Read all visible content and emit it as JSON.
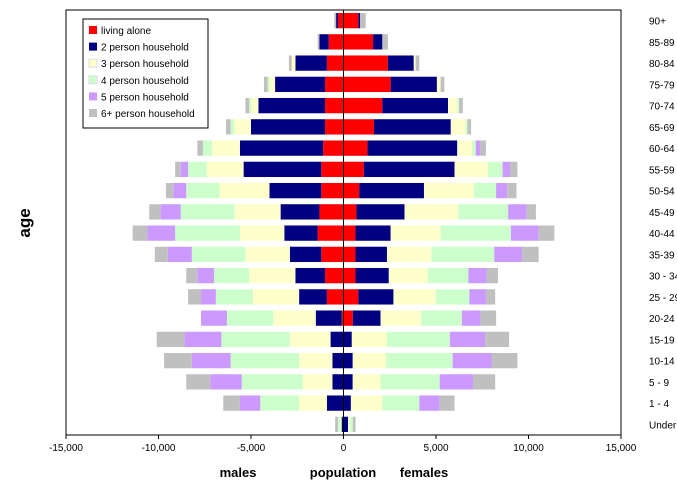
{
  "chart_data": {
    "type": "bar",
    "orientation": "horizontal",
    "stacked": true,
    "diverging": true,
    "categories": [
      "Under 1",
      "1 - 4",
      "5 - 9",
      "10-14",
      "15-19",
      "20-24",
      "25 - 29",
      "30 - 34",
      "35-39",
      "40-44",
      "45-49",
      "50-54",
      "55-59",
      "60-64",
      "65-69",
      "70-74",
      "75-79",
      "80-84",
      "85-89",
      "90+"
    ],
    "series": [
      {
        "name": "living alone",
        "color": "#ff0000",
        "males": [
          0,
          0,
          0,
          0,
          0,
          100,
          900,
          1000,
          1200,
          1400,
          1300,
          1200,
          1200,
          1100,
          1000,
          1000,
          1000,
          900,
          800,
          300
        ],
        "females": [
          0,
          0,
          0,
          0,
          0,
          500,
          800,
          650,
          650,
          650,
          700,
          850,
          1100,
          1300,
          1650,
          2100,
          2550,
          2400,
          1600,
          800
        ]
      },
      {
        "name": "2 person household",
        "color": "#000080",
        "males": [
          100,
          900,
          600,
          600,
          700,
          1400,
          1500,
          1600,
          1700,
          1800,
          2100,
          2800,
          4200,
          4500,
          4000,
          3600,
          2700,
          1700,
          500,
          100
        ],
        "females": [
          250,
          400,
          500,
          500,
          450,
          1500,
          1900,
          1800,
          1700,
          1900,
          2600,
          3500,
          4900,
          4850,
          4150,
          3550,
          2500,
          1400,
          500,
          100
        ]
      },
      {
        "name": "3 person household",
        "color": "#ffffcc",
        "males": [
          50,
          1500,
          1600,
          1800,
          2200,
          2300,
          2500,
          2500,
          2400,
          2400,
          2500,
          2700,
          2000,
          1500,
          900,
          400,
          300,
          200,
          0,
          0
        ],
        "females": [
          100,
          1700,
          1500,
          1800,
          1900,
          2200,
          2300,
          2100,
          2400,
          2700,
          2900,
          2700,
          1800,
          800,
          800,
          500,
          200,
          100,
          0,
          0
        ]
      },
      {
        "name": "4 person household",
        "color": "#ccffcc",
        "males": [
          150,
          2100,
          3300,
          3700,
          3700,
          2500,
          2000,
          1900,
          2900,
          3500,
          2900,
          1800,
          1000,
          500,
          200,
          100,
          100,
          0,
          0,
          0
        ],
        "females": [
          150,
          2000,
          3200,
          3600,
          3400,
          2200,
          1800,
          2200,
          3400,
          3800,
          2700,
          1200,
          800,
          200,
          100,
          100,
          0,
          0,
          0,
          0
        ],
        "label_printed_in_legend": true
      },
      {
        "name": "5 person household",
        "color": "#cc99ff",
        "males": [
          0,
          1100,
          1700,
          2100,
          2000,
          1400,
          800,
          900,
          1300,
          1500,
          1100,
          700,
          400,
          0,
          0,
          0,
          0,
          0,
          0,
          0
        ],
        "females": [
          0,
          1100,
          1800,
          2100,
          1900,
          1000,
          900,
          1000,
          1500,
          1500,
          1000,
          600,
          400,
          250,
          0,
          0,
          0,
          0,
          0,
          0
        ]
      },
      {
        "name": "6+ person household",
        "color": "#c0c0c0",
        "males": [
          150,
          900,
          1300,
          1500,
          1500,
          0,
          700,
          600,
          700,
          800,
          600,
          400,
          300,
          300,
          250,
          200,
          200,
          150,
          100,
          100
        ],
        "females": [
          150,
          800,
          1200,
          1400,
          1300,
          850,
          500,
          600,
          900,
          850,
          500,
          500,
          400,
          300,
          200,
          200,
          200,
          200,
          300,
          300
        ]
      }
    ],
    "xlim": [
      -15000,
      15000
    ],
    "xticks": [
      -15000,
      -10000,
      -5000,
      0,
      5000,
      10000,
      15000
    ],
    "xtick_labels": [
      "-15,000",
      "-10,000",
      "-5,000",
      "0",
      "5,000",
      "10,000",
      "15,000"
    ],
    "ylabel": "age",
    "xlabels": {
      "left": "males",
      "center": "population",
      "right": "females"
    },
    "legend_position": "top-left",
    "grid": false
  }
}
